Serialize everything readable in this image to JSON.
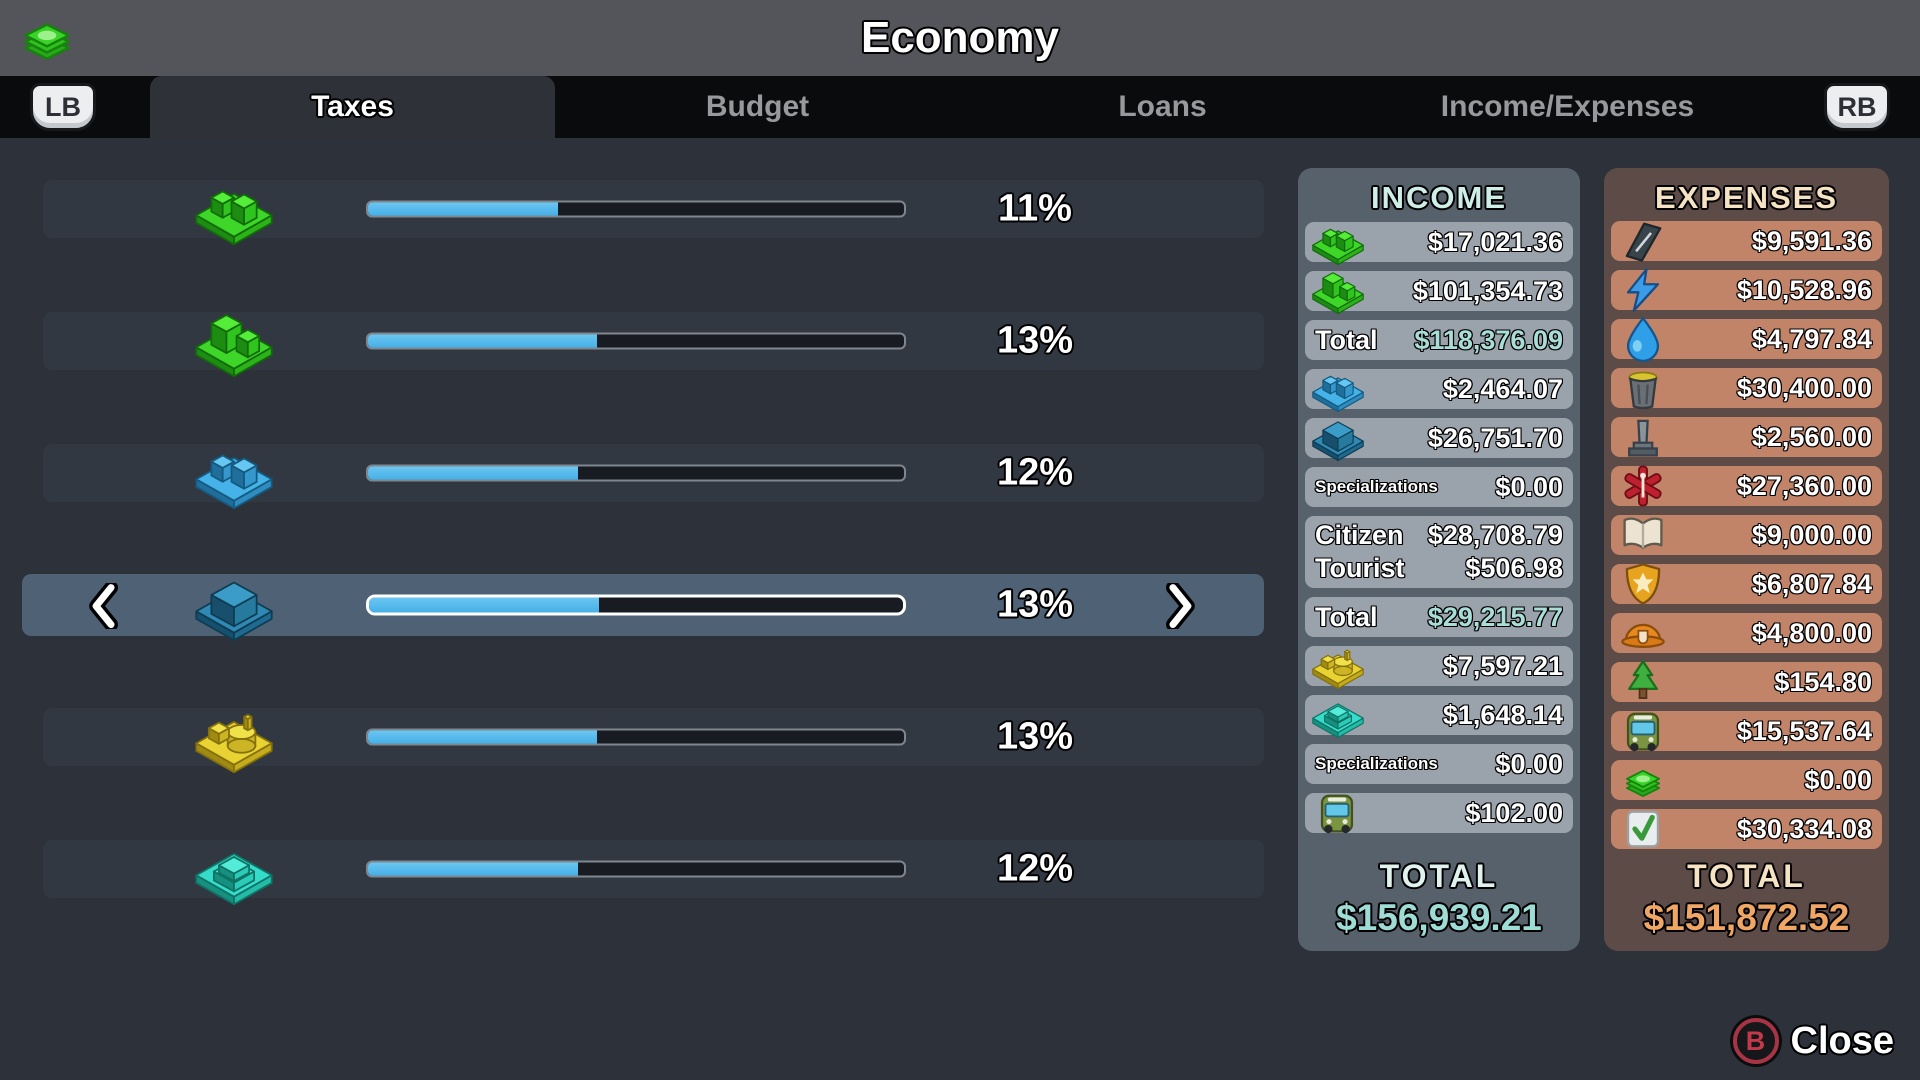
{
  "header": {
    "title": "Economy",
    "icon": "money"
  },
  "tabs": {
    "lb_label": "LB",
    "rb_label": "RB",
    "items": [
      {
        "label": "Taxes",
        "active": true
      },
      {
        "label": "Budget",
        "active": false
      },
      {
        "label": "Loans",
        "active": false
      },
      {
        "label": "Income/Expenses",
        "active": false
      }
    ]
  },
  "taxes": {
    "selected_index": 3,
    "rows": [
      {
        "icon": "residential-low",
        "percent": "11%",
        "bar_fill_pct": 35.5
      },
      {
        "icon": "residential-high",
        "percent": "13%",
        "bar_fill_pct": 42.8
      },
      {
        "icon": "commercial-low",
        "percent": "12%",
        "bar_fill_pct": 39.2
      },
      {
        "icon": "commercial-high",
        "percent": "13%",
        "bar_fill_pct": 43.0
      },
      {
        "icon": "industrial",
        "percent": "13%",
        "bar_fill_pct": 42.8
      },
      {
        "icon": "office",
        "percent": "12%",
        "bar_fill_pct": 39.2
      }
    ]
  },
  "income": {
    "title": "INCOME",
    "rows": [
      {
        "icon": "residential-low",
        "value": "$17,021.36"
      },
      {
        "icon": "residential-high",
        "value": "$101,354.73"
      },
      {
        "label": "Total",
        "value": "$118,376.09",
        "total": true
      },
      {
        "icon": "commercial-low",
        "value": "$2,464.07"
      },
      {
        "icon": "commercial-high",
        "value": "$26,751.70"
      },
      {
        "label": "Specializations",
        "value": "$0.00",
        "small": true
      },
      {
        "lines": [
          {
            "label": "Citizen",
            "value": "$28,708.79"
          },
          {
            "label": "Tourist",
            "value": "$506.98"
          }
        ]
      },
      {
        "label": "Total",
        "value": "$29,215.77",
        "total": true
      },
      {
        "icon": "industrial",
        "value": "$7,597.21"
      },
      {
        "icon": "office",
        "value": "$1,648.14"
      },
      {
        "label": "Specializations",
        "value": "$0.00",
        "small": true
      },
      {
        "icon": "transport",
        "value": "$102.00"
      }
    ],
    "total_label": "TOTAL",
    "total_value": "$156,939.21"
  },
  "expenses": {
    "title": "EXPENSES",
    "rows": [
      {
        "icon": "roads",
        "value": "$9,591.36"
      },
      {
        "icon": "electricity",
        "value": "$10,528.96"
      },
      {
        "icon": "water",
        "value": "$4,797.84"
      },
      {
        "icon": "garbage",
        "value": "$30,400.00"
      },
      {
        "icon": "deathcare",
        "value": "$2,560.00"
      },
      {
        "icon": "healthcare",
        "value": "$27,360.00"
      },
      {
        "icon": "education",
        "value": "$9,000.00"
      },
      {
        "icon": "police",
        "value": "$6,807.84"
      },
      {
        "icon": "fire",
        "value": "$4,800.00"
      },
      {
        "icon": "parks",
        "value": "$154.80"
      },
      {
        "icon": "transport",
        "value": "$15,537.64"
      },
      {
        "icon": "loans",
        "value": "$0.00"
      },
      {
        "icon": "policies",
        "value": "$30,334.08"
      }
    ],
    "total_label": "TOTAL",
    "total_value": "$151,872.52"
  },
  "footer": {
    "b_label": "B",
    "close_label": "Close"
  },
  "colors": {
    "bar_fill": "#49b4ec",
    "selected_row": "#4e6175",
    "income_panel": "#57616c",
    "income_accent": "#9edcd6",
    "expenses_panel": "#5d4b47",
    "expenses_accent": "#f0a765"
  }
}
